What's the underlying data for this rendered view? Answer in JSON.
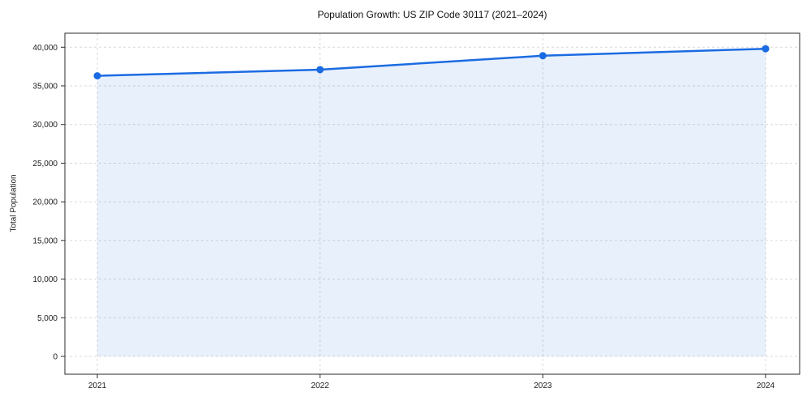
{
  "header": {
    "title": "Population Growth: US ZIP Code 30117 (2021–2024)"
  },
  "chart_data": {
    "type": "area",
    "title": "Population Growth: US ZIP Code 30117 (2021–2024)",
    "xlabel": "",
    "ylabel": "Total Population",
    "x": [
      2021,
      2022,
      2023,
      2024
    ],
    "categories": [
      "2021",
      "2022",
      "2023",
      "2024"
    ],
    "series": [
      {
        "name": "Total Population",
        "values": [
          36300,
          37100,
          38900,
          39800
        ]
      }
    ],
    "ylim": [
      0,
      40000
    ],
    "yticks": [
      0,
      5000,
      10000,
      15000,
      20000,
      25000,
      30000,
      35000,
      40000
    ],
    "grid": true,
    "grid_style": "dashed",
    "legend_position": "none",
    "colors": {
      "line": "#1b6be2",
      "marker": "#1b6be2",
      "fill": "rgba(27,107,226,0.10)",
      "grid": "#d9d9d9",
      "spine": "#2b2b2b",
      "tick_text": "#1a1a1a",
      "background": "#ffffff"
    }
  }
}
